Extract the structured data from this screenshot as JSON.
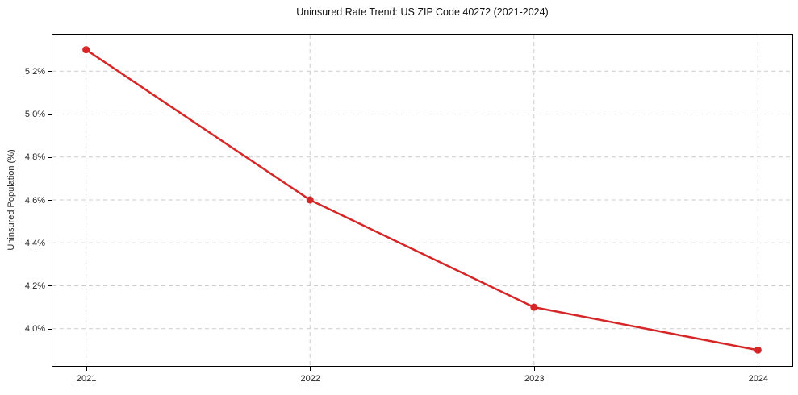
{
  "chart_data": {
    "type": "line",
    "title": "Uninsured Rate Trend: US ZIP Code 40272 (2021-2024)",
    "xlabel": "",
    "ylabel": "Uninsured Population (%)",
    "x": [
      2021,
      2022,
      2023,
      2024
    ],
    "values": [
      5.3,
      4.6,
      4.1,
      3.9
    ],
    "xlim": [
      2020.85,
      2024.15
    ],
    "ylim": [
      3.83,
      5.37
    ],
    "xticks": [
      2021,
      2022,
      2023,
      2024
    ],
    "xtick_labels": [
      "2021",
      "2022",
      "2023",
      "2024"
    ],
    "yticks": [
      4.0,
      4.2,
      4.4,
      4.6,
      4.8,
      5.0,
      5.2
    ],
    "ytick_labels": [
      "4.0%",
      "4.2%",
      "4.4%",
      "4.6%",
      "4.8%",
      "5.0%",
      "5.2%"
    ],
    "grid": true,
    "grid_style": "dashed",
    "legend": false,
    "marker": "circle",
    "colors": {
      "line": "#d62728",
      "marker": "#d62728",
      "grid": "#cccccc",
      "spine": "#000000",
      "text": "#262626",
      "background": "#ffffff"
    }
  }
}
